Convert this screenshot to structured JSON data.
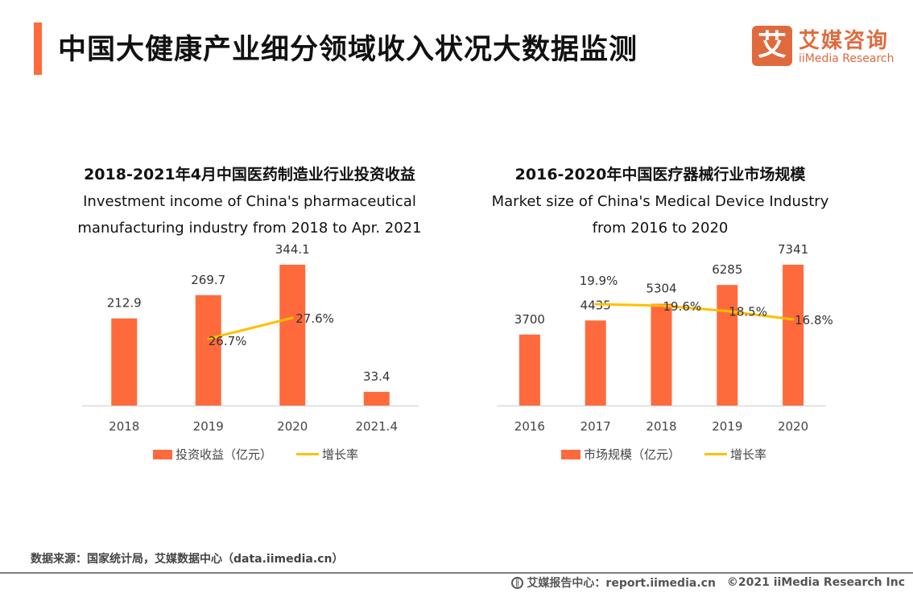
{
  "header": {
    "title": "中国大健康产业细分领域收入状况大数据监测",
    "logo": {
      "mark": "艾",
      "name_cn": "艾媒咨询",
      "name_en": "iiMedia Research",
      "icon": "iimedia-logo-icon"
    }
  },
  "colors": {
    "accent": "#ff6a3d",
    "bar": "#ff6a3d",
    "line": "#ffc000",
    "logo": "#e06a3e"
  },
  "chart_data": [
    {
      "type": "bar",
      "title": "2018-2021年4月中国医药制造业行业投资收益",
      "subtitle_line1": "Investment income of China's pharmaceutical",
      "subtitle_line2": "manufacturing industry from 2018 to Apr. 2021",
      "categories": [
        "2018",
        "2019",
        "2020",
        "2021.4"
      ],
      "series": [
        {
          "name": "投资收益（亿元）",
          "type": "bar",
          "values": [
            212.9,
            269.7,
            344.1,
            33.4
          ],
          "labels": [
            "212.9",
            "269.7",
            "344.1",
            "33.4"
          ]
        },
        {
          "name": "增长率",
          "type": "line",
          "values": [
            null,
            26.7,
            27.6,
            null
          ],
          "labels": [
            "",
            "26.7%",
            "27.6%",
            ""
          ]
        }
      ],
      "legend": {
        "bar": "投资收益（亿元）",
        "line": "增长率"
      },
      "legend_position": "bottom",
      "ylim": [
        0,
        420
      ],
      "grid": false
    },
    {
      "type": "bar",
      "title": "2016-2020年中国医疗器械行业市场规模",
      "subtitle_line1": "Market size of China's Medical Device Industry",
      "subtitle_line2": "from 2016 to 2020",
      "categories": [
        "2016",
        "2017",
        "2018",
        "2019",
        "2020"
      ],
      "series": [
        {
          "name": "市场规模（亿元）",
          "type": "bar",
          "values": [
            3700,
            4435,
            5304,
            6285,
            7341
          ],
          "labels": [
            "3700",
            "4435",
            "5304",
            "6285",
            "7341"
          ]
        },
        {
          "name": "增长率",
          "type": "line",
          "values": [
            null,
            19.9,
            19.6,
            18.5,
            16.8
          ],
          "labels": [
            "",
            "19.9%",
            "19.6%",
            "18.5%",
            "16.8%"
          ]
        }
      ],
      "legend": {
        "bar": "市场规模（亿元）",
        "line": "增长率"
      },
      "legend_position": "bottom",
      "ylim": [
        0,
        10000
      ],
      "grid": false
    }
  ],
  "footer": {
    "source": "数据来源：国家统计局，艾媒数据中心（data.iimedia.cn）",
    "report_center": "艾媒报告中心：report.iimedia.cn",
    "copyright": "©2021  iiMedia Research  Inc",
    "icon": "globe-icon"
  }
}
